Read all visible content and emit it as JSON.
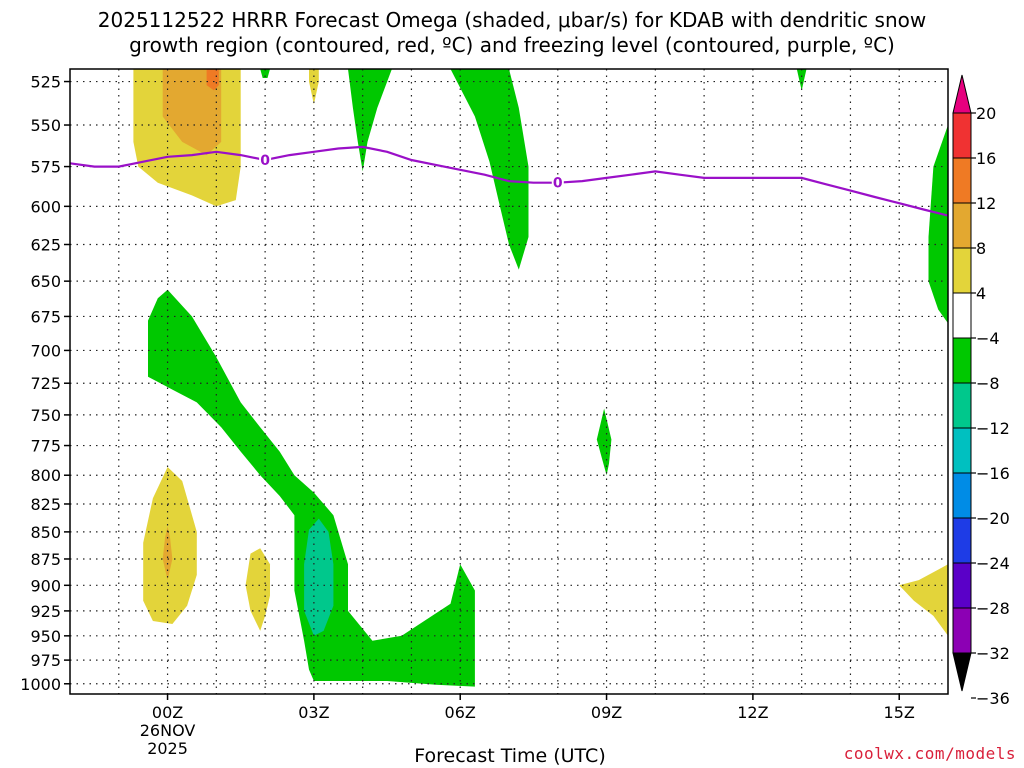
{
  "title_line1": "2025112522 HRRR Forecast Omega (shaded, μbar/s) for KDAB with dendritic snow",
  "title_line2": "growth region (contoured, red, ºC) and freezing level (contoured, purple, ºC)",
  "credit": "coolwx.com/models",
  "chart_data": {
    "type": "heatmap",
    "xlabel": "Forecast Time (UTC)",
    "ylabel": "",
    "x_ticks": [
      {
        "label": "00Z",
        "hour": 0,
        "sub1": "26NOV",
        "sub2": "2025"
      },
      {
        "label": "03Z",
        "hour": 3
      },
      {
        "label": "06Z",
        "hour": 6
      },
      {
        "label": "09Z",
        "hour": 9
      },
      {
        "label": "12Z",
        "hour": 12
      },
      {
        "label": "15Z",
        "hour": 15
      }
    ],
    "xlim": [
      -2,
      16
    ],
    "y_ticks": [
      525,
      550,
      575,
      600,
      625,
      650,
      675,
      700,
      725,
      750,
      775,
      800,
      825,
      850,
      875,
      900,
      925,
      950,
      975,
      1000
    ],
    "ylim": [
      1011,
      518
    ],
    "y_scale": "log",
    "grid": true,
    "colorbar": {
      "labels": [
        "20",
        "16",
        "12",
        "8",
        "4",
        "-4",
        "-8",
        "-12",
        "-16",
        "-20",
        "-24",
        "-28",
        "-32",
        "-36"
      ],
      "colors": [
        "#e6007e",
        "#f03232",
        "#ef7a24",
        "#e3a830",
        "#e3d43a",
        "#ffffff",
        "#00c800",
        "#00c88c",
        "#00c0c0",
        "#008ce6",
        "#1e3ce6",
        "#5a00c8",
        "#8c00b4",
        "#a0a0a0"
      ]
    },
    "freezing_level": {
      "color": "#9a10c8",
      "contour_label": "0",
      "points": [
        [
          -2,
          573
        ],
        [
          -1.5,
          575
        ],
        [
          -1,
          575
        ],
        [
          -0.5,
          572
        ],
        [
          0,
          569
        ],
        [
          0.5,
          568
        ],
        [
          1,
          566
        ],
        [
          1.5,
          568
        ],
        [
          2,
          571
        ],
        [
          2.5,
          568
        ],
        [
          3,
          566
        ],
        [
          3.5,
          564
        ],
        [
          4,
          563
        ],
        [
          4.5,
          566
        ],
        [
          5,
          571
        ],
        [
          5.5,
          574
        ],
        [
          6,
          577
        ],
        [
          6.5,
          580
        ],
        [
          7,
          584
        ],
        [
          7.5,
          585
        ],
        [
          8,
          585
        ],
        [
          8.5,
          584
        ],
        [
          9,
          582
        ],
        [
          9.5,
          580
        ],
        [
          10,
          578
        ],
        [
          10.5,
          580
        ],
        [
          11,
          582
        ],
        [
          11.5,
          582
        ],
        [
          12,
          582
        ],
        [
          12.5,
          582
        ],
        [
          13,
          582
        ],
        [
          13.5,
          586
        ],
        [
          14,
          590
        ],
        [
          14.5,
          594
        ],
        [
          15,
          598
        ],
        [
          15.5,
          602
        ],
        [
          16,
          606
        ]
      ],
      "label_hours": [
        2,
        8
      ]
    },
    "omega_regions": [
      {
        "level": 4,
        "color": "#e3d43a",
        "points": [
          [
            -0.7,
            518
          ],
          [
            -0.7,
            560
          ],
          [
            -0.6,
            575
          ],
          [
            -0.2,
            585
          ],
          [
            0.5,
            593
          ],
          [
            1,
            600
          ],
          [
            1.4,
            596
          ],
          [
            1.5,
            575
          ],
          [
            1.5,
            518
          ]
        ]
      },
      {
        "level": 8,
        "color": "#e3a830",
        "points": [
          [
            -0.1,
            518
          ],
          [
            -0.1,
            545
          ],
          [
            0.3,
            560
          ],
          [
            0.8,
            568
          ],
          [
            1.1,
            560
          ],
          [
            1.1,
            518
          ]
        ]
      },
      {
        "level": 12,
        "color": "#ef7a24",
        "points": [
          [
            0.8,
            518
          ],
          [
            0.8,
            527
          ],
          [
            0.95,
            530
          ],
          [
            1.05,
            527
          ],
          [
            1.05,
            518
          ]
        ]
      },
      {
        "level": 4,
        "color": "#e3d43a",
        "points": [
          [
            2.9,
            518
          ],
          [
            2.9,
            525
          ],
          [
            3.0,
            538
          ],
          [
            3.1,
            525
          ],
          [
            3.1,
            518
          ]
        ]
      },
      {
        "level": 4,
        "color": "#e3d43a",
        "points": [
          [
            -0.5,
            915
          ],
          [
            -0.5,
            860
          ],
          [
            -0.3,
            820
          ],
          [
            0,
            793
          ],
          [
            0.3,
            805
          ],
          [
            0.6,
            850
          ],
          [
            0.6,
            890
          ],
          [
            0.4,
            920
          ],
          [
            0.1,
            938
          ],
          [
            -0.3,
            935
          ]
        ]
      },
      {
        "level": 8,
        "color": "#e3a830",
        "points": [
          [
            -0.1,
            875
          ],
          [
            -0.05,
            855
          ],
          [
            0,
            845
          ],
          [
            0.05,
            855
          ],
          [
            0.1,
            875
          ],
          [
            0,
            895
          ]
        ]
      },
      {
        "level": 4,
        "color": "#e3d43a",
        "points": [
          [
            1.6,
            900
          ],
          [
            1.7,
            870
          ],
          [
            1.9,
            865
          ],
          [
            2.1,
            880
          ],
          [
            2.1,
            910
          ],
          [
            2.0,
            930
          ],
          [
            1.9,
            945
          ],
          [
            1.7,
            925
          ]
        ]
      },
      {
        "level": 4,
        "color": "#e3d43a",
        "points": [
          [
            15,
            900
          ],
          [
            15.4,
            895
          ],
          [
            15.8,
            885
          ],
          [
            16,
            880
          ],
          [
            16,
            950
          ],
          [
            15.7,
            930
          ],
          [
            15.3,
            915
          ]
        ]
      },
      {
        "level": -4,
        "color": "#00c800",
        "points": [
          [
            3.7,
            518
          ],
          [
            3.8,
            540
          ],
          [
            3.9,
            560
          ],
          [
            4.0,
            578
          ],
          [
            4.1,
            560
          ],
          [
            4.3,
            540
          ],
          [
            4.6,
            518
          ]
        ]
      },
      {
        "level": -4,
        "color": "#00c800",
        "points": [
          [
            5.8,
            518
          ],
          [
            6.3,
            545
          ],
          [
            6.6,
            572
          ],
          [
            6.8,
            598
          ],
          [
            7.0,
            625
          ],
          [
            7.2,
            642
          ],
          [
            7.4,
            620
          ],
          [
            7.4,
            575
          ],
          [
            7.2,
            540
          ],
          [
            7.0,
            518
          ]
        ]
      },
      {
        "level": -4,
        "color": "#00c800",
        "points": [
          [
            1.9,
            518
          ],
          [
            1.95,
            523
          ],
          [
            2.05,
            523
          ],
          [
            2.1,
            518
          ]
        ]
      },
      {
        "level": -4,
        "color": "#00c800",
        "points": [
          [
            12.9,
            518
          ],
          [
            12.95,
            524
          ],
          [
            13.0,
            530
          ],
          [
            13.1,
            518
          ]
        ]
      },
      {
        "level": -4,
        "color": "#00c800",
        "points": [
          [
            16,
            550
          ],
          [
            15.7,
            575
          ],
          [
            15.6,
            620
          ],
          [
            15.6,
            650
          ],
          [
            15.8,
            670
          ],
          [
            16,
            680
          ]
        ]
      },
      {
        "level": -4,
        "color": "#00c800",
        "points": [
          [
            -0.4,
            700
          ],
          [
            -0.4,
            678
          ],
          [
            -0.2,
            662
          ],
          [
            0,
            656
          ],
          [
            0.5,
            675
          ],
          [
            1.0,
            705
          ],
          [
            1.5,
            740
          ],
          [
            1.9,
            760
          ],
          [
            2.3,
            780
          ],
          [
            2.6,
            800
          ],
          [
            3.0,
            815
          ],
          [
            3.4,
            835
          ],
          [
            3.7,
            880
          ],
          [
            3.7,
            925
          ],
          [
            4.2,
            955
          ],
          [
            4.8,
            950
          ],
          [
            5.8,
            918
          ],
          [
            6.0,
            880
          ],
          [
            6.3,
            905
          ],
          [
            6.3,
            960
          ],
          [
            6.3,
            1003
          ],
          [
            5.5,
            1001
          ],
          [
            4.5,
            997
          ],
          [
            3.5,
            997
          ],
          [
            3.0,
            997
          ],
          [
            2.9,
            985
          ],
          [
            2.8,
            955
          ],
          [
            2.6,
            905
          ],
          [
            2.6,
            865
          ],
          [
            2.6,
            835
          ],
          [
            2.3,
            818
          ],
          [
            1.9,
            800
          ],
          [
            1.5,
            780
          ],
          [
            1.1,
            760
          ],
          [
            0.6,
            740
          ],
          [
            0.1,
            730
          ],
          [
            -0.4,
            720
          ]
        ]
      },
      {
        "level": -8,
        "color": "#00c88c",
        "points": [
          [
            2.8,
            925
          ],
          [
            2.8,
            880
          ],
          [
            2.9,
            848
          ],
          [
            3.1,
            838
          ],
          [
            3.3,
            850
          ],
          [
            3.4,
            880
          ],
          [
            3.4,
            920
          ],
          [
            3.2,
            945
          ],
          [
            3.0,
            950
          ]
        ]
      },
      {
        "level": -4,
        "color": "#00c800",
        "points": [
          [
            8.8,
            770
          ],
          [
            8.95,
            745
          ],
          [
            9.1,
            770
          ],
          [
            9.05,
            790
          ],
          [
            9.0,
            800
          ],
          [
            8.9,
            785
          ]
        ]
      }
    ],
    "ground": {
      "color": "#9a5a2a",
      "pressure_top": 1011
    }
  }
}
